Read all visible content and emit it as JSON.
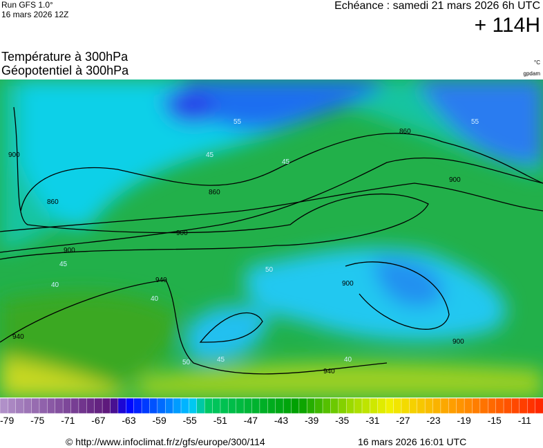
{
  "header": {
    "run": "Run GFS 1.0°",
    "run_date": "16 mars 2026 12Z",
    "echeance": "Echéance : samedi 21 mars 2026 6h UTC",
    "lead": "+ 114H"
  },
  "titles": [
    "Température à 300hPa",
    "Géopotentiel à 300hPa"
  ],
  "units": [
    "°C",
    "gpdam"
  ],
  "scale_labels": [
    "-79",
    "-75",
    "-71",
    "-67",
    "-63",
    "-59",
    "-55",
    "-51",
    "-47",
    "-43",
    "-39",
    "-35",
    "-31",
    "-27",
    "-23",
    "-19",
    "-15",
    "-11"
  ],
  "contour_labels": [
    "860",
    "860",
    "860",
    "900",
    "900",
    "900",
    "900",
    "900",
    "940",
    "940",
    "940",
    "55",
    "55",
    "45",
    "45",
    "45",
    "40",
    "40",
    "50",
    "45",
    "50",
    "40"
  ],
  "footer": {
    "url": "© http://www.infoclimat.fr/z/gfs/europe/300/114",
    "time": "16 mars 2026 16:01 UTC"
  }
}
